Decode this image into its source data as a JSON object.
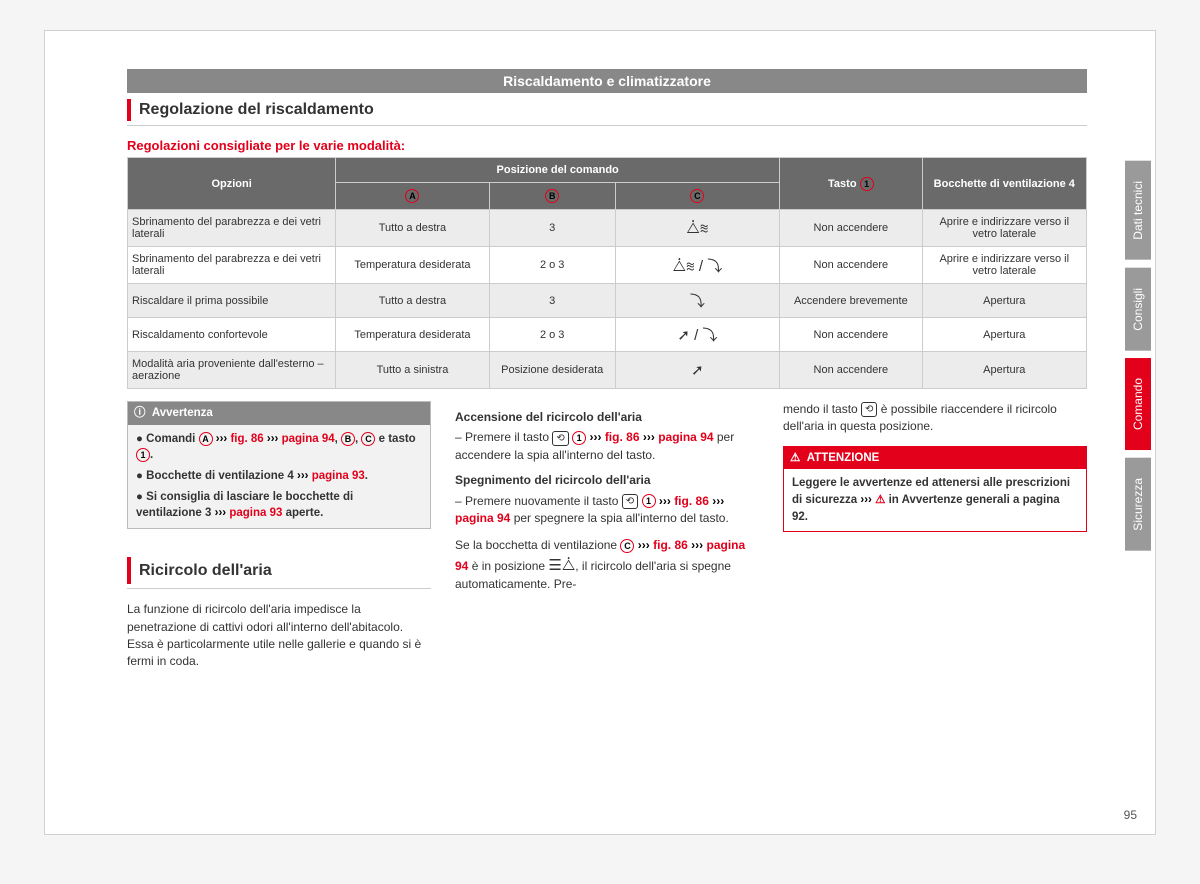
{
  "header": {
    "title": "Riscaldamento e climatizzatore"
  },
  "section1": {
    "title": "Regolazione del riscaldamento"
  },
  "subheading": "Regolazioni consigliate per le varie modalità:",
  "table": {
    "headers": {
      "col1": "Opzioni",
      "col2_span": "Posizione del comando",
      "col2a": "A",
      "col2b": "B",
      "col2c": "C",
      "col3": "Tasto",
      "col3_badge": "1",
      "col4": "Bocchette di ventilazione 4"
    },
    "rows": [
      {
        "opt": "Sbrinamento del parabrezza e dei vetri laterali",
        "a": "Tutto a destra",
        "b": "3",
        "c_icon": "front-defrost",
        "d": "Non accendere",
        "e": "Aprire e indirizzare verso il vetro laterale"
      },
      {
        "opt": "Sbrinamento del parabrezza e dei vetri laterali",
        "a": "Temperatura desiderata",
        "b": "2 o 3",
        "c_icon": "front-defrost-feet",
        "d": "Non accendere",
        "e": "Aprire e indirizzare verso il vetro laterale"
      },
      {
        "opt": "Riscaldare il prima possibile",
        "a": "Tutto a destra",
        "b": "3",
        "c_icon": "feet",
        "d": "Accendere brevemente",
        "e": "Apertura"
      },
      {
        "opt": "Riscaldamento confortevole",
        "a": "Temperatura desiderata",
        "b": "2 o 3",
        "c_icon": "face-feet",
        "d": "Non accendere",
        "e": "Apertura"
      },
      {
        "opt": "Modalità aria proveniente dall'esterno – aerazione",
        "a": "Tutto a sinistra",
        "b": "Posizione desiderata",
        "c_icon": "face",
        "d": "Non accendere",
        "e": "Apertura"
      }
    ]
  },
  "note": {
    "head_icon": "ⓘ",
    "head": "Avvertenza",
    "b1a": "Comandi ",
    "b1b": " e tasto ",
    "b2a": "Bocchette di ventilazione 4 ",
    "b2b": "pagina 93",
    "b3a": "Si consiglia di lasciare le bocchette di ventilazione 3 ",
    "b3b": "pagina 93",
    "b3c": " aperte.",
    "fig": "fig. 86",
    "page": "pagina 94"
  },
  "section2": {
    "title": "Ricircolo dell'aria"
  },
  "col1_p": "La funzione di ricircolo dell'aria impedisce la penetrazione di cattivi odori all'interno dell'abitacolo. Essa è particolarmente utile nelle gallerie e quando si è fermi in coda.",
  "col2": {
    "h1": "Accensione del ricircolo dell'aria",
    "p1a": "Premere il tasto ",
    "p1b": " per accendere la spia all'interno del tasto.",
    "h2": "Spegnimento del ricircolo dell'aria",
    "p2a": "Premere nuovamente il tasto ",
    "p2b": " per spegnere la spia all'interno del tasto.",
    "p3a": "Se la bocchetta di ventilazione ",
    "p3b": " è in posizione ",
    "p3c": ", il ricircolo dell'aria si spegne automaticamente. Pre-",
    "fig": "fig. 86",
    "page": "pagina 94"
  },
  "col3": {
    "p1a": "mendo il tasto ",
    "p1b": " è possibile riaccendere il ricircolo dell'aria in questa posizione."
  },
  "warn": {
    "head_icon": "⚠",
    "head": "ATTENZIONE",
    "body1": "Leggere le avvertenze ed attenersi alle prescrizioni di sicurezza ",
    "body2": " in Avvertenze generali a pagina 92."
  },
  "tabs": [
    "Dati tecnici",
    "Consigli",
    "Comando",
    "Sicurezza"
  ],
  "page_num": "95",
  "colors": {
    "accent": "#e2001a",
    "gray": "#888"
  }
}
